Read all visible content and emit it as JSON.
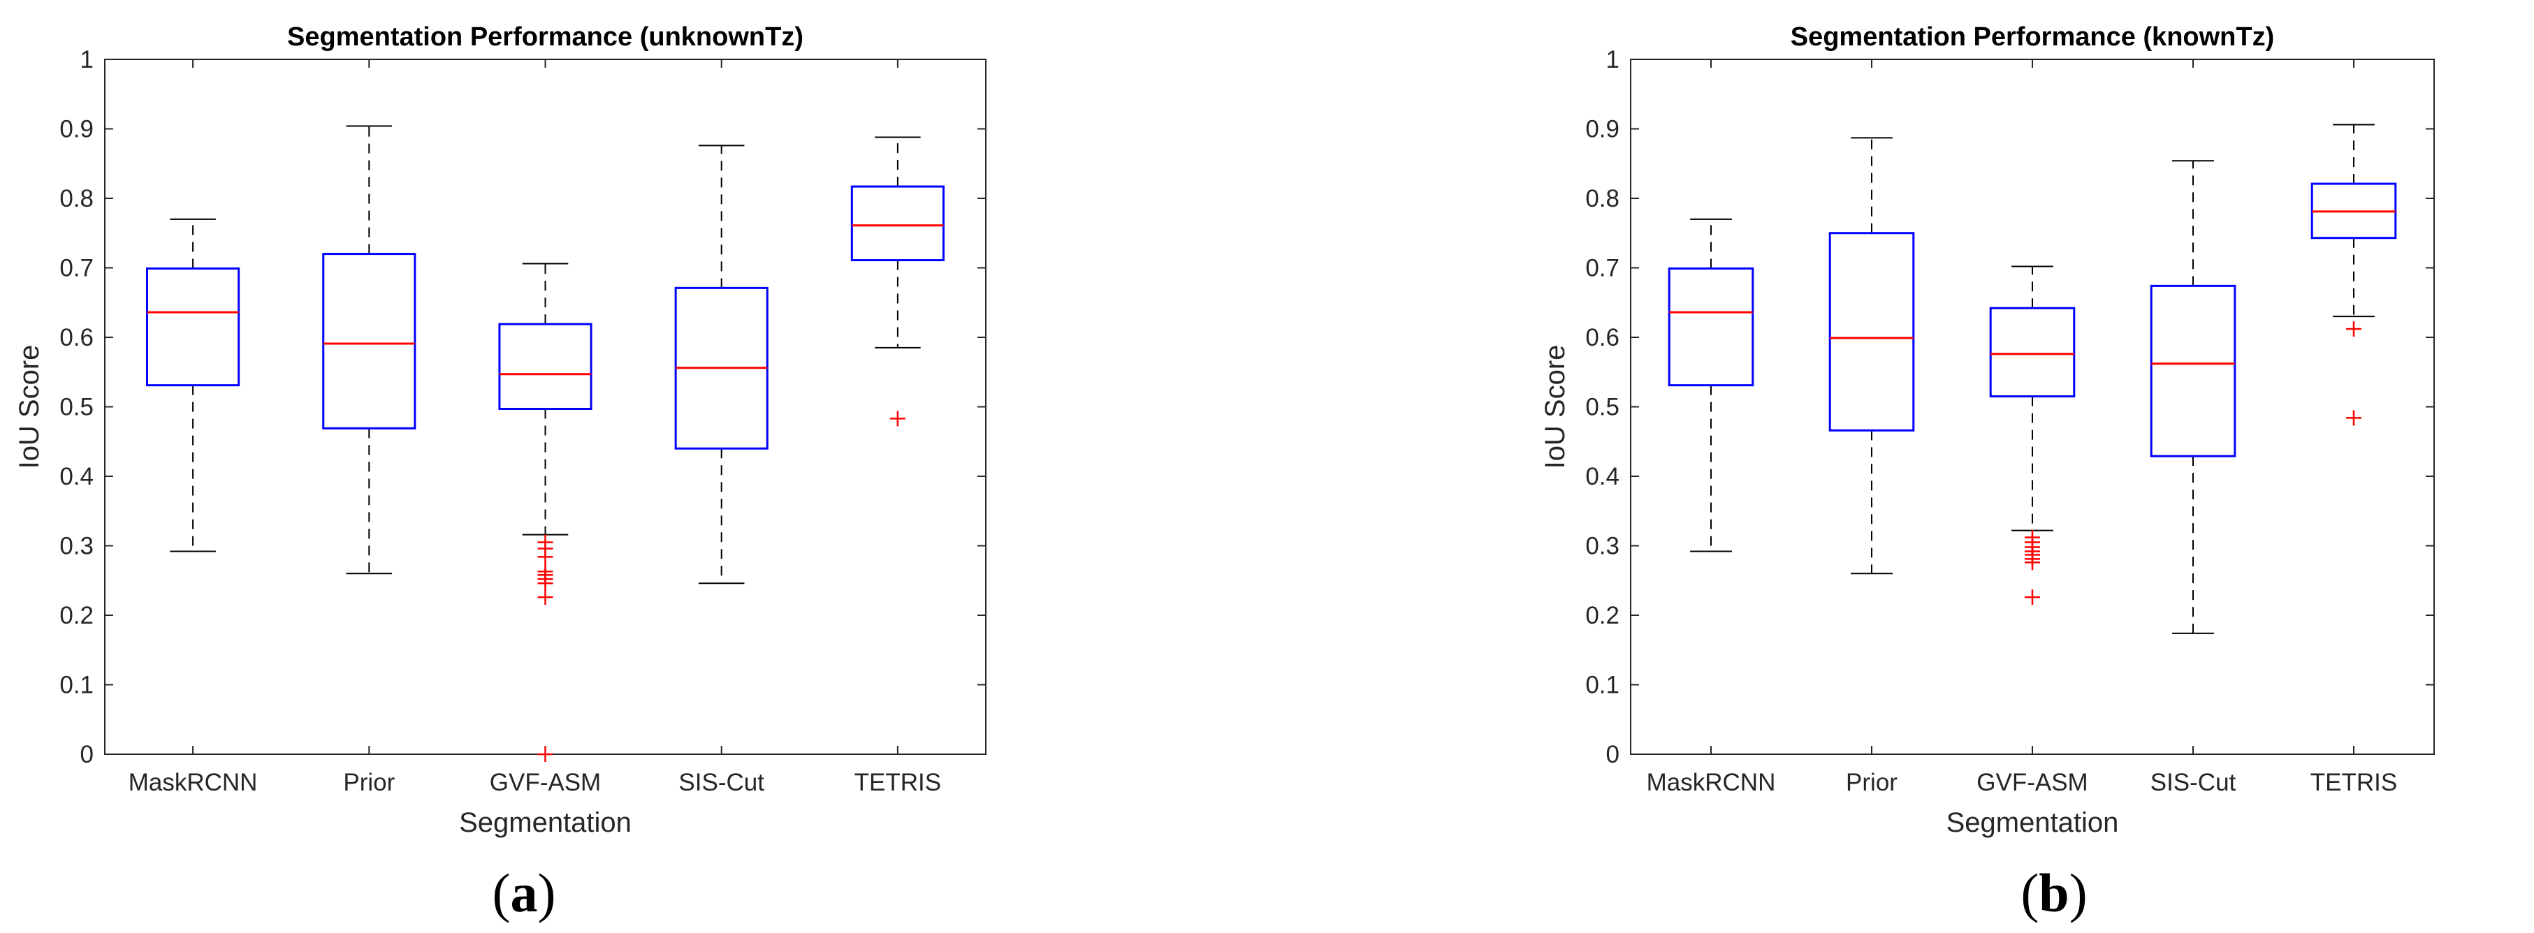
{
  "colors": {
    "box": "#0000ff",
    "median": "#ff0000",
    "whisker": "#000000",
    "outlier": "#ff0000",
    "frame": "#262626"
  },
  "chart_data": [
    {
      "type": "box",
      "title": "Segmentation Performance (unknownTz)",
      "xlabel": "Segmentation",
      "ylabel": "IoU Score",
      "ylim": [
        0,
        1
      ],
      "yticks": [
        "0",
        "0.1",
        "0.2",
        "0.3",
        "0.4",
        "0.5",
        "0.6",
        "0.7",
        "0.8",
        "0.9",
        "1"
      ],
      "caption": {
        "open": "(",
        "letter": "a",
        "close": ")"
      },
      "categories": [
        "MaskRCNN",
        "Prior",
        "GVF-ASM",
        "SIS-Cut",
        "TETRIS"
      ],
      "boxes": [
        {
          "whisker_low": 0.292,
          "q1": 0.531,
          "median": 0.636,
          "q3": 0.699,
          "whisker_high": 0.77,
          "outliers": []
        },
        {
          "whisker_low": 0.26,
          "q1": 0.469,
          "median": 0.591,
          "q3": 0.72,
          "whisker_high": 0.904,
          "outliers": []
        },
        {
          "whisker_low": 0.316,
          "q1": 0.497,
          "median": 0.547,
          "q3": 0.619,
          "whisker_high": 0.706,
          "outliers": [
            0.305,
            0.296,
            0.284,
            0.263,
            0.258,
            0.252,
            0.246,
            0.226,
            0.0
          ]
        },
        {
          "whisker_low": 0.246,
          "q1": 0.44,
          "median": 0.556,
          "q3": 0.671,
          "whisker_high": 0.876,
          "outliers": []
        },
        {
          "whisker_low": 0.585,
          "q1": 0.711,
          "median": 0.761,
          "q3": 0.817,
          "whisker_high": 0.888,
          "outliers": [
            0.483
          ]
        }
      ]
    },
    {
      "type": "box",
      "title": "Segmentation Performance (knownTz)",
      "xlabel": "Segmentation",
      "ylabel": "IoU Score",
      "ylim": [
        0,
        1
      ],
      "yticks": [
        "0",
        "0.1",
        "0.2",
        "0.3",
        "0.4",
        "0.5",
        "0.6",
        "0.7",
        "0.8",
        "0.9",
        "1"
      ],
      "caption": {
        "open": "(",
        "letter": "b",
        "close": ")"
      },
      "categories": [
        "MaskRCNN",
        "Prior",
        "GVF-ASM",
        "SIS-Cut",
        "TETRIS"
      ],
      "boxes": [
        {
          "whisker_low": 0.292,
          "q1": 0.531,
          "median": 0.636,
          "q3": 0.699,
          "whisker_high": 0.77,
          "outliers": []
        },
        {
          "whisker_low": 0.26,
          "q1": 0.466,
          "median": 0.599,
          "q3": 0.75,
          "whisker_high": 0.887,
          "outliers": []
        },
        {
          "whisker_low": 0.322,
          "q1": 0.515,
          "median": 0.576,
          "q3": 0.642,
          "whisker_high": 0.702,
          "outliers": [
            0.312,
            0.305,
            0.298,
            0.292,
            0.287,
            0.281,
            0.276,
            0.226
          ]
        },
        {
          "whisker_low": 0.174,
          "q1": 0.429,
          "median": 0.562,
          "q3": 0.674,
          "whisker_high": 0.854,
          "outliers": []
        },
        {
          "whisker_low": 0.63,
          "q1": 0.743,
          "median": 0.781,
          "q3": 0.821,
          "whisker_high": 0.906,
          "outliers": [
            0.612,
            0.484
          ]
        }
      ]
    }
  ]
}
